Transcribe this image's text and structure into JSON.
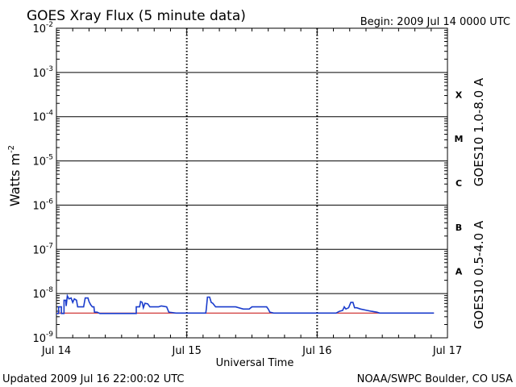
{
  "header": {
    "title": "GOES Xray Flux (5 minute data)",
    "begin": "Begin:  2009 Jul 14 0000 UTC"
  },
  "footer": {
    "updated": "Updated 2009 Jul 16 22:00:02 UTC",
    "credit": "NOAA/SWPC Boulder, CO USA"
  },
  "chart_data": {
    "type": "line",
    "title": "GOES Xray Flux (5 minute data)",
    "xlabel": "Universal Time",
    "ylabel_base": "Watts m",
    "ylabel_exp": "-2",
    "yscale": "log",
    "ylim": [
      1e-09,
      0.01
    ],
    "xlim": [
      0,
      72
    ],
    "x_unit": "hours since Jul 14 0000 UTC",
    "x_ticks": [
      {
        "x": 0,
        "label": "Jul 14"
      },
      {
        "x": 24,
        "label": "Jul 15"
      },
      {
        "x": 48,
        "label": "Jul 16"
      },
      {
        "x": 72,
        "label": "Jul 17"
      }
    ],
    "y_ticks": [
      {
        "exp": -9,
        "label_base": "10",
        "label_exp": "-9"
      },
      {
        "exp": -8,
        "label_base": "10",
        "label_exp": "-8"
      },
      {
        "exp": -7,
        "label_base": "10",
        "label_exp": "-7"
      },
      {
        "exp": -6,
        "label_base": "10",
        "label_exp": "-6"
      },
      {
        "exp": -5,
        "label_base": "10",
        "label_exp": "-5"
      },
      {
        "exp": -4,
        "label_base": "10",
        "label_exp": "-4"
      },
      {
        "exp": -3,
        "label_base": "10",
        "label_exp": "-3"
      },
      {
        "exp": -2,
        "label_base": "10",
        "label_exp": "-2"
      }
    ],
    "flare_classes": [
      {
        "label": "A",
        "exp": -7.5
      },
      {
        "label": "B",
        "exp": -6.5
      },
      {
        "label": "C",
        "exp": -5.5
      },
      {
        "label": "M",
        "exp": -4.5
      },
      {
        "label": "X",
        "exp": -3.5
      }
    ],
    "series": [
      {
        "name": "GOES10 1.0-8.0 A",
        "color": "#cc2222",
        "points": [
          [
            0,
            -8.44
          ],
          [
            69.5,
            -8.44
          ]
        ]
      },
      {
        "name": "GOES10 0.5-4.0 A",
        "color": "#1a3ccc",
        "points": [
          [
            0,
            -8.45
          ],
          [
            0.4,
            -8.45
          ],
          [
            0.4,
            -8.3
          ],
          [
            0.9,
            -8.3
          ],
          [
            0.9,
            -8.45
          ],
          [
            1.4,
            -8.45
          ],
          [
            1.4,
            -8.15
          ],
          [
            1.7,
            -8.15
          ],
          [
            1.8,
            -8.28
          ],
          [
            2.0,
            -8.05
          ],
          [
            2.3,
            -8.12
          ],
          [
            2.7,
            -8.1
          ],
          [
            3.0,
            -8.2
          ],
          [
            3.3,
            -8.12
          ],
          [
            3.7,
            -8.15
          ],
          [
            3.9,
            -8.3
          ],
          [
            4.2,
            -8.3
          ],
          [
            4.5,
            -8.3
          ],
          [
            5.0,
            -8.3
          ],
          [
            5.3,
            -8.1
          ],
          [
            5.8,
            -8.1
          ],
          [
            6.0,
            -8.18
          ],
          [
            6.3,
            -8.25
          ],
          [
            6.6,
            -8.3
          ],
          [
            6.9,
            -8.3
          ],
          [
            7.0,
            -8.42
          ],
          [
            7.5,
            -8.42
          ],
          [
            8,
            -8.45
          ],
          [
            14.7,
            -8.45
          ],
          [
            14.7,
            -8.3
          ],
          [
            15.3,
            -8.3
          ],
          [
            15.5,
            -8.18
          ],
          [
            15.8,
            -8.2
          ],
          [
            16.0,
            -8.32
          ],
          [
            16.3,
            -8.22
          ],
          [
            16.8,
            -8.23
          ],
          [
            17.2,
            -8.3
          ],
          [
            18.8,
            -8.3
          ],
          [
            19.3,
            -8.28
          ],
          [
            20.3,
            -8.3
          ],
          [
            20.7,
            -8.42
          ],
          [
            22,
            -8.44
          ],
          [
            27.5,
            -8.44
          ],
          [
            27.6,
            -8.35
          ],
          [
            27.8,
            -8.08
          ],
          [
            28.2,
            -8.08
          ],
          [
            28.5,
            -8.2
          ],
          [
            28.8,
            -8.22
          ],
          [
            29.3,
            -8.3
          ],
          [
            31.5,
            -8.3
          ],
          [
            33,
            -8.3
          ],
          [
            34.4,
            -8.35
          ],
          [
            35.5,
            -8.35
          ],
          [
            36,
            -8.3
          ],
          [
            37.5,
            -8.3
          ],
          [
            38.7,
            -8.3
          ],
          [
            39,
            -8.35
          ],
          [
            39.3,
            -8.42
          ],
          [
            40,
            -8.44
          ],
          [
            51.5,
            -8.44
          ],
          [
            52.1,
            -8.4
          ],
          [
            52.7,
            -8.38
          ],
          [
            53.0,
            -8.3
          ],
          [
            53.3,
            -8.35
          ],
          [
            53.8,
            -8.32
          ],
          [
            54.2,
            -8.2
          ],
          [
            54.6,
            -8.2
          ],
          [
            54.9,
            -8.32
          ],
          [
            55.3,
            -8.32
          ],
          [
            56.0,
            -8.35
          ],
          [
            57.2,
            -8.38
          ],
          [
            58.0,
            -8.4
          ],
          [
            59.0,
            -8.42
          ],
          [
            59.5,
            -8.44
          ],
          [
            69.5,
            -8.44
          ]
        ]
      }
    ]
  }
}
